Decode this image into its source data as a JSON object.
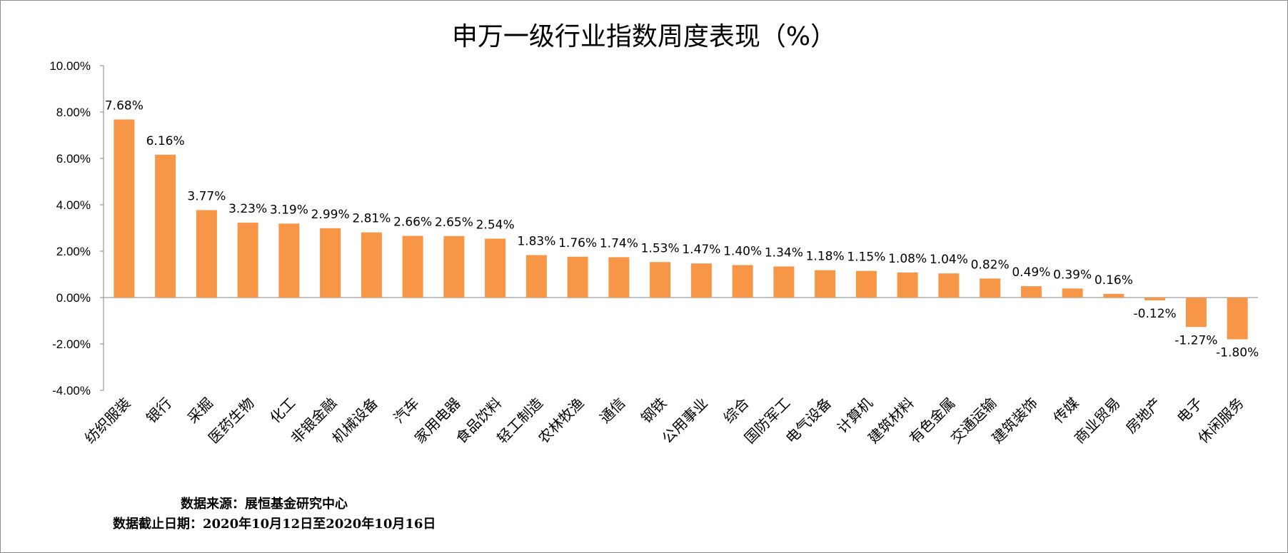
{
  "chart_data": {
    "type": "bar",
    "title": "申万一级行业指数周度表现（%）",
    "categories": [
      "纺织服装",
      "银行",
      "采掘",
      "医药生物",
      "化工",
      "非银金融",
      "机械设备",
      "汽车",
      "家用电器",
      "食品饮料",
      "轻工制造",
      "农林牧渔",
      "通信",
      "钢铁",
      "公用事业",
      "综合",
      "国防军工",
      "电气设备",
      "计算机",
      "建筑材料",
      "有色金属",
      "交通运输",
      "建筑装饰",
      "传媒",
      "商业贸易",
      "房地产",
      "电子",
      "休闲服务"
    ],
    "values": [
      7.68,
      6.16,
      3.77,
      3.23,
      3.19,
      2.99,
      2.81,
      2.66,
      2.65,
      2.54,
      1.83,
      1.76,
      1.74,
      1.53,
      1.47,
      1.4,
      1.34,
      1.18,
      1.15,
      1.08,
      1.04,
      0.82,
      0.49,
      0.39,
      0.16,
      -0.12,
      -1.27,
      -1.8
    ],
    "data_labels": [
      "7.68%",
      "6.16%",
      "3.77%",
      "3.23%",
      "3.19%",
      "2.99%",
      "2.81%",
      "2.66%",
      "2.65%",
      "2.54%",
      "1.83%",
      "1.76%",
      "1.74%",
      "1.53%",
      "1.47%",
      "1.40%",
      "1.34%",
      "1.18%",
      "1.15%",
      "1.08%",
      "1.04%",
      "0.82%",
      "0.49%",
      "0.39%",
      "0.16%",
      "-0.12%",
      "-1.27%",
      "-1.80%"
    ],
    "ylim": [
      -4,
      10
    ],
    "yticks": [
      10,
      8,
      6,
      4,
      2,
      0,
      -2,
      -4
    ],
    "ytick_labels": [
      "10.00%",
      "8.00%",
      "6.00%",
      "4.00%",
      "2.00%",
      "0.00%",
      "-2.00%",
      "-4.00%"
    ],
    "bar_color": "#f79646",
    "grid": false,
    "legend": "none"
  },
  "notes": {
    "source": "数据来源：展恒基金研究中心",
    "period": "数据截止日期：2020年10月12日至2020年10月16日"
  }
}
